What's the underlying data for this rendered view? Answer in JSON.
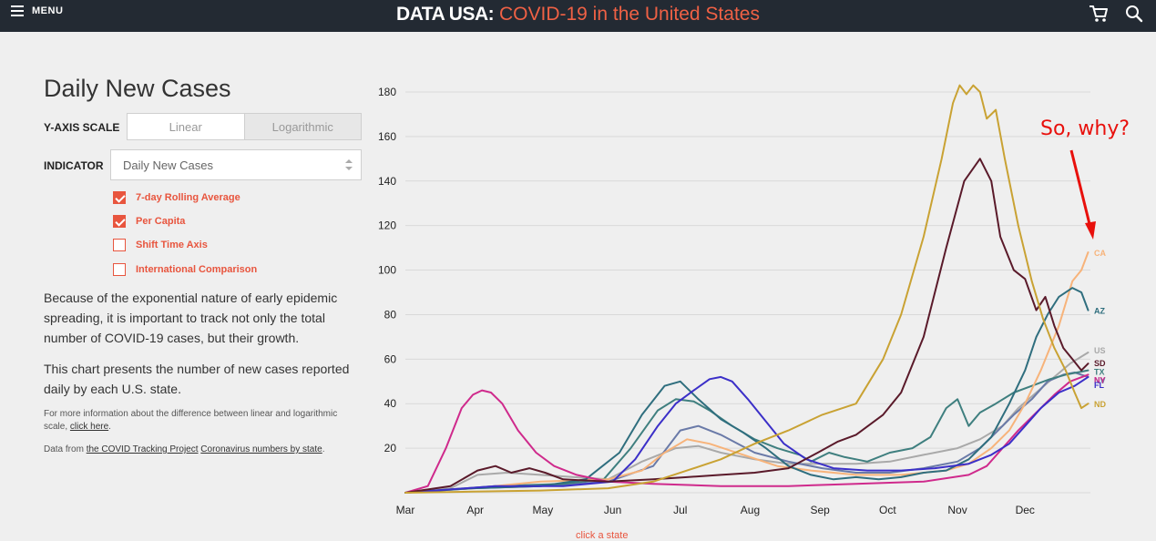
{
  "header": {
    "menu_label": "MENU",
    "brand": "DATA USA",
    "brand_sep": ":",
    "title": "COVID-19 in the United States",
    "cart_icon": "cart-icon",
    "search_icon": "search-icon"
  },
  "panel": {
    "title": "Daily New Cases",
    "yaxis_label": "Y-AXIS SCALE",
    "scale_options": [
      "Linear",
      "Logarithmic"
    ],
    "scale_selected": "Linear",
    "indicator_label": "INDICATOR",
    "indicator_value": "Daily New Cases",
    "checkboxes": [
      {
        "label": "7-day Rolling Average",
        "checked": true
      },
      {
        "label": "Per Capita",
        "checked": true
      },
      {
        "label": "Shift Time Axis",
        "checked": false
      },
      {
        "label": "International Comparison",
        "checked": false
      }
    ],
    "para1": "Because of the exponential nature of early epidemic spreading, it is important to track not only the total number of COVID-19 cases, but their growth.",
    "para2": "This chart presents the number of new cases reported daily by each U.S. state.",
    "note1_text": "For more information about the difference between linear and logarithmic scale,",
    "note1_link": "click here",
    "note1_end": ".",
    "note2_prefix": "Data from",
    "note2_link1": "the COVID Tracking Project",
    "note2_link2": "Coronavirus numbers by state",
    "note2_end": "."
  },
  "caption": "click a state",
  "annotation": {
    "text": "So, why?",
    "color": "#e8100c"
  },
  "colors": {
    "accent": "#e8553e",
    "header_bg": "#232a33",
    "page_bg": "#efefef"
  },
  "chart_data": {
    "type": "line",
    "ylim": [
      0,
      180
    ],
    "yticks": [
      20,
      40,
      60,
      80,
      100,
      120,
      140,
      160,
      180
    ],
    "x_tick_labels": [
      "Mar",
      "Apr",
      "May",
      "Jun",
      "Jul",
      "Aug",
      "Sep",
      "Oct",
      "Nov",
      "Dec"
    ],
    "x_tick_days": [
      0,
      31,
      61,
      92,
      122,
      153,
      184,
      214,
      245,
      275
    ],
    "x_max": 304,
    "grid": true,
    "series": [
      {
        "name": "ND",
        "color": "#c9a233",
        "points": [
          [
            0,
            0
          ],
          [
            30,
            0.5
          ],
          [
            60,
            1
          ],
          [
            90,
            2
          ],
          [
            110,
            5
          ],
          [
            125,
            10
          ],
          [
            140,
            15
          ],
          [
            155,
            22
          ],
          [
            170,
            28
          ],
          [
            185,
            35
          ],
          [
            200,
            40
          ],
          [
            212,
            60
          ],
          [
            220,
            80
          ],
          [
            230,
            115
          ],
          [
            238,
            150
          ],
          [
            243,
            175
          ],
          [
            246,
            183
          ],
          [
            249,
            179
          ],
          [
            252,
            183
          ],
          [
            255,
            180
          ],
          [
            258,
            168
          ],
          [
            262,
            172
          ],
          [
            266,
            150
          ],
          [
            272,
            120
          ],
          [
            278,
            95
          ],
          [
            283,
            78
          ],
          [
            288,
            65
          ],
          [
            293,
            55
          ],
          [
            297,
            45
          ],
          [
            300,
            38
          ],
          [
            303,
            40
          ]
        ]
      },
      {
        "name": "SD",
        "color": "#5a1a2a",
        "points": [
          [
            0,
            0
          ],
          [
            20,
            3
          ],
          [
            32,
            10
          ],
          [
            40,
            12
          ],
          [
            47,
            9
          ],
          [
            55,
            11
          ],
          [
            62,
            9
          ],
          [
            70,
            6
          ],
          [
            90,
            5
          ],
          [
            110,
            6
          ],
          [
            125,
            7
          ],
          [
            140,
            8
          ],
          [
            155,
            9
          ],
          [
            170,
            11
          ],
          [
            183,
            18
          ],
          [
            192,
            23
          ],
          [
            200,
            26
          ],
          [
            212,
            35
          ],
          [
            220,
            45
          ],
          [
            230,
            70
          ],
          [
            240,
            110
          ],
          [
            248,
            140
          ],
          [
            255,
            150
          ],
          [
            260,
            140
          ],
          [
            264,
            115
          ],
          [
            270,
            100
          ],
          [
            275,
            96
          ],
          [
            280,
            82
          ],
          [
            284,
            88
          ],
          [
            288,
            75
          ],
          [
            292,
            65
          ],
          [
            296,
            60
          ],
          [
            300,
            55
          ],
          [
            303,
            58
          ]
        ]
      },
      {
        "name": "AZ",
        "color": "#2f6e7e",
        "points": [
          [
            0,
            0
          ],
          [
            30,
            2
          ],
          [
            60,
            3
          ],
          [
            80,
            6
          ],
          [
            95,
            18
          ],
          [
            105,
            35
          ],
          [
            115,
            48
          ],
          [
            122,
            50
          ],
          [
            130,
            42
          ],
          [
            140,
            33
          ],
          [
            150,
            27
          ],
          [
            160,
            20
          ],
          [
            170,
            12
          ],
          [
            180,
            8
          ],
          [
            190,
            6
          ],
          [
            200,
            7
          ],
          [
            210,
            6
          ],
          [
            220,
            7
          ],
          [
            230,
            9
          ],
          [
            240,
            10
          ],
          [
            250,
            15
          ],
          [
            260,
            25
          ],
          [
            268,
            40
          ],
          [
            275,
            55
          ],
          [
            280,
            70
          ],
          [
            285,
            80
          ],
          [
            290,
            88
          ],
          [
            296,
            92
          ],
          [
            300,
            90
          ],
          [
            303,
            82
          ]
        ]
      },
      {
        "name": "CA",
        "color": "#f7b37a",
        "points": [
          [
            0,
            0
          ],
          [
            30,
            2
          ],
          [
            60,
            5
          ],
          [
            90,
            6
          ],
          [
            105,
            10
          ],
          [
            115,
            18
          ],
          [
            125,
            24
          ],
          [
            135,
            22
          ],
          [
            150,
            17
          ],
          [
            165,
            12
          ],
          [
            180,
            10
          ],
          [
            200,
            8
          ],
          [
            220,
            8
          ],
          [
            240,
            10
          ],
          [
            250,
            13
          ],
          [
            260,
            20
          ],
          [
            268,
            28
          ],
          [
            275,
            40
          ],
          [
            282,
            55
          ],
          [
            290,
            75
          ],
          [
            296,
            95
          ],
          [
            300,
            100
          ],
          [
            303,
            108
          ]
        ]
      },
      {
        "name": "US",
        "color": "#a9a9a9",
        "points": [
          [
            0,
            0
          ],
          [
            20,
            2
          ],
          [
            32,
            8
          ],
          [
            45,
            9
          ],
          [
            60,
            8
          ],
          [
            75,
            7
          ],
          [
            90,
            6
          ],
          [
            105,
            14
          ],
          [
            120,
            20
          ],
          [
            130,
            21
          ],
          [
            140,
            18
          ],
          [
            155,
            15
          ],
          [
            170,
            13
          ],
          [
            185,
            13
          ],
          [
            200,
            13
          ],
          [
            215,
            14
          ],
          [
            230,
            17
          ],
          [
            245,
            20
          ],
          [
            255,
            24
          ],
          [
            265,
            30
          ],
          [
            272,
            38
          ],
          [
            280,
            45
          ],
          [
            288,
            52
          ],
          [
            295,
            58
          ],
          [
            303,
            63
          ]
        ]
      },
      {
        "name": "NV",
        "color": "#6a7aa8",
        "points": [
          [
            0,
            0
          ],
          [
            30,
            2
          ],
          [
            60,
            3
          ],
          [
            90,
            5
          ],
          [
            110,
            12
          ],
          [
            122,
            28
          ],
          [
            130,
            30
          ],
          [
            140,
            26
          ],
          [
            155,
            18
          ],
          [
            170,
            14
          ],
          [
            185,
            11
          ],
          [
            200,
            9
          ],
          [
            215,
            9
          ],
          [
            230,
            11
          ],
          [
            245,
            14
          ],
          [
            255,
            20
          ],
          [
            263,
            28
          ],
          [
            270,
            35
          ],
          [
            278,
            42
          ],
          [
            285,
            50
          ],
          [
            292,
            53
          ],
          [
            297,
            54
          ],
          [
            303,
            52
          ]
        ]
      },
      {
        "name": "NY",
        "color": "#cf2a8c",
        "points": [
          [
            0,
            0
          ],
          [
            10,
            3
          ],
          [
            18,
            20
          ],
          [
            25,
            38
          ],
          [
            30,
            44
          ],
          [
            34,
            46
          ],
          [
            38,
            45
          ],
          [
            43,
            40
          ],
          [
            50,
            28
          ],
          [
            58,
            18
          ],
          [
            66,
            12
          ],
          [
            76,
            8
          ],
          [
            90,
            5
          ],
          [
            110,
            4
          ],
          [
            140,
            3
          ],
          [
            170,
            3
          ],
          [
            200,
            4
          ],
          [
            230,
            5
          ],
          [
            250,
            8
          ],
          [
            258,
            12
          ],
          [
            265,
            20
          ],
          [
            272,
            28
          ],
          [
            280,
            36
          ],
          [
            288,
            44
          ],
          [
            295,
            50
          ],
          [
            303,
            53
          ]
        ]
      },
      {
        "name": "FL",
        "color": "#3b2fc8",
        "points": [
          [
            0,
            0
          ],
          [
            40,
            3
          ],
          [
            70,
            3
          ],
          [
            92,
            5
          ],
          [
            102,
            15
          ],
          [
            112,
            30
          ],
          [
            120,
            40
          ],
          [
            128,
            46
          ],
          [
            135,
            51
          ],
          [
            140,
            52
          ],
          [
            145,
            50
          ],
          [
            152,
            42
          ],
          [
            160,
            32
          ],
          [
            168,
            22
          ],
          [
            178,
            15
          ],
          [
            190,
            11
          ],
          [
            205,
            10
          ],
          [
            220,
            10
          ],
          [
            235,
            11
          ],
          [
            250,
            13
          ],
          [
            260,
            17
          ],
          [
            268,
            22
          ],
          [
            275,
            30
          ],
          [
            282,
            38
          ],
          [
            290,
            45
          ],
          [
            297,
            48
          ],
          [
            303,
            52
          ]
        ]
      },
      {
        "name": "TX",
        "color": "#3f7f7f",
        "points": [
          [
            0,
            0
          ],
          [
            40,
            3
          ],
          [
            70,
            4
          ],
          [
            88,
            6
          ],
          [
            100,
            20
          ],
          [
            112,
            37
          ],
          [
            120,
            42
          ],
          [
            128,
            41
          ],
          [
            135,
            37
          ],
          [
            145,
            30
          ],
          [
            155,
            24
          ],
          [
            165,
            20
          ],
          [
            175,
            17
          ],
          [
            180,
            14
          ],
          [
            188,
            18
          ],
          [
            195,
            16
          ],
          [
            205,
            14
          ],
          [
            215,
            18
          ],
          [
            225,
            20
          ],
          [
            233,
            25
          ],
          [
            240,
            38
          ],
          [
            245,
            42
          ],
          [
            250,
            30
          ],
          [
            255,
            36
          ],
          [
            262,
            40
          ],
          [
            270,
            45
          ],
          [
            278,
            48
          ],
          [
            286,
            51
          ],
          [
            293,
            53
          ],
          [
            298,
            54
          ],
          [
            303,
            55
          ]
        ]
      }
    ]
  }
}
